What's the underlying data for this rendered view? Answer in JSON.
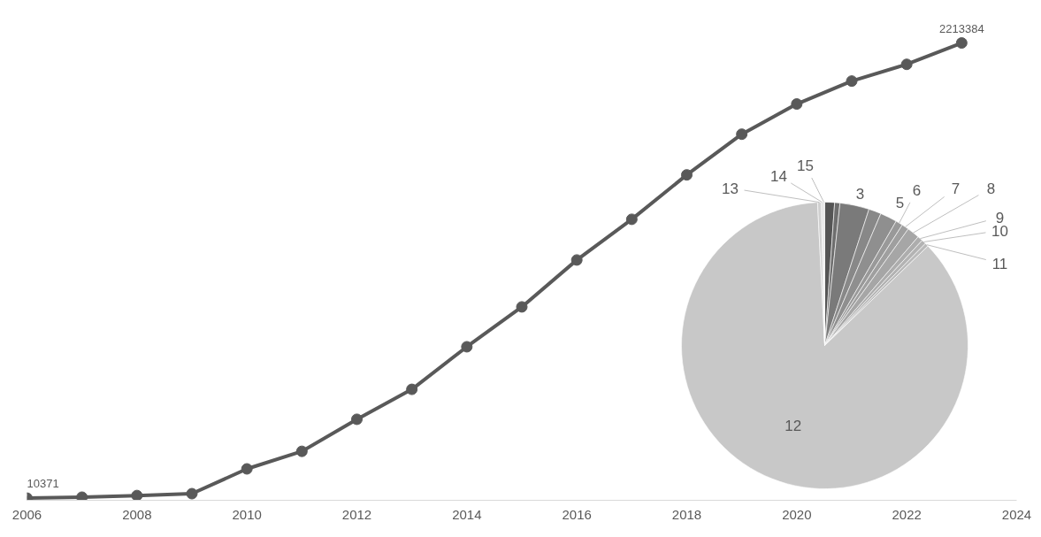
{
  "chart_data": [
    {
      "type": "line",
      "x": [
        2006,
        2007,
        2008,
        2009,
        2010,
        2011,
        2012,
        2013,
        2014,
        2015,
        2016,
        2017,
        2018,
        2019,
        2020,
        2021,
        2022,
        2023
      ],
      "xlim": [
        2006,
        2024
      ],
      "xticks": [
        2006,
        2008,
        2010,
        2012,
        2014,
        2016,
        2018,
        2020,
        2022,
        2024
      ],
      "tick_labels": "x",
      "grid": false,
      "marker": "circle",
      "line_style": "solid",
      "series": [
        {
          "color": "#595959",
          "values": [
            10371,
            15000,
            23000,
            32000,
            152000,
            237000,
            392000,
            537000,
            743000,
            936000,
            1163000,
            1360000,
            1575000,
            1772000,
            1918000,
            2029000,
            2110000,
            2213384
          ],
          "value_labels": [
            "10371",
            null,
            null,
            null,
            null,
            null,
            null,
            null,
            null,
            null,
            null,
            null,
            null,
            null,
            null,
            null,
            null,
            "2213384"
          ]
        }
      ]
    },
    {
      "type": "pie",
      "categories": [
        null,
        null,
        "3",
        null,
        "5",
        "6",
        "7",
        "8",
        "9",
        "10",
        "11",
        "12",
        "13",
        "14",
        "15"
      ],
      "values": [
        1.1,
        0.6,
        3.3,
        1.4,
        1.9,
        0.8,
        0.8,
        1.4,
        0.6,
        0.5,
        0.4,
        86.4,
        0.4,
        0.2,
        0.2
      ],
      "colors": [
        "#555555",
        "#6e6e6e",
        "#7a7a7a",
        "#888888",
        "#8f8f8f",
        "#999999",
        "#9f9f9f",
        "#a6a6a6",
        "#adadad",
        "#b3b3b3",
        "#bababa",
        "#c8c8c8",
        "#d0d0d0",
        "#d8d8d8",
        "#e0e0e0"
      ]
    }
  ]
}
